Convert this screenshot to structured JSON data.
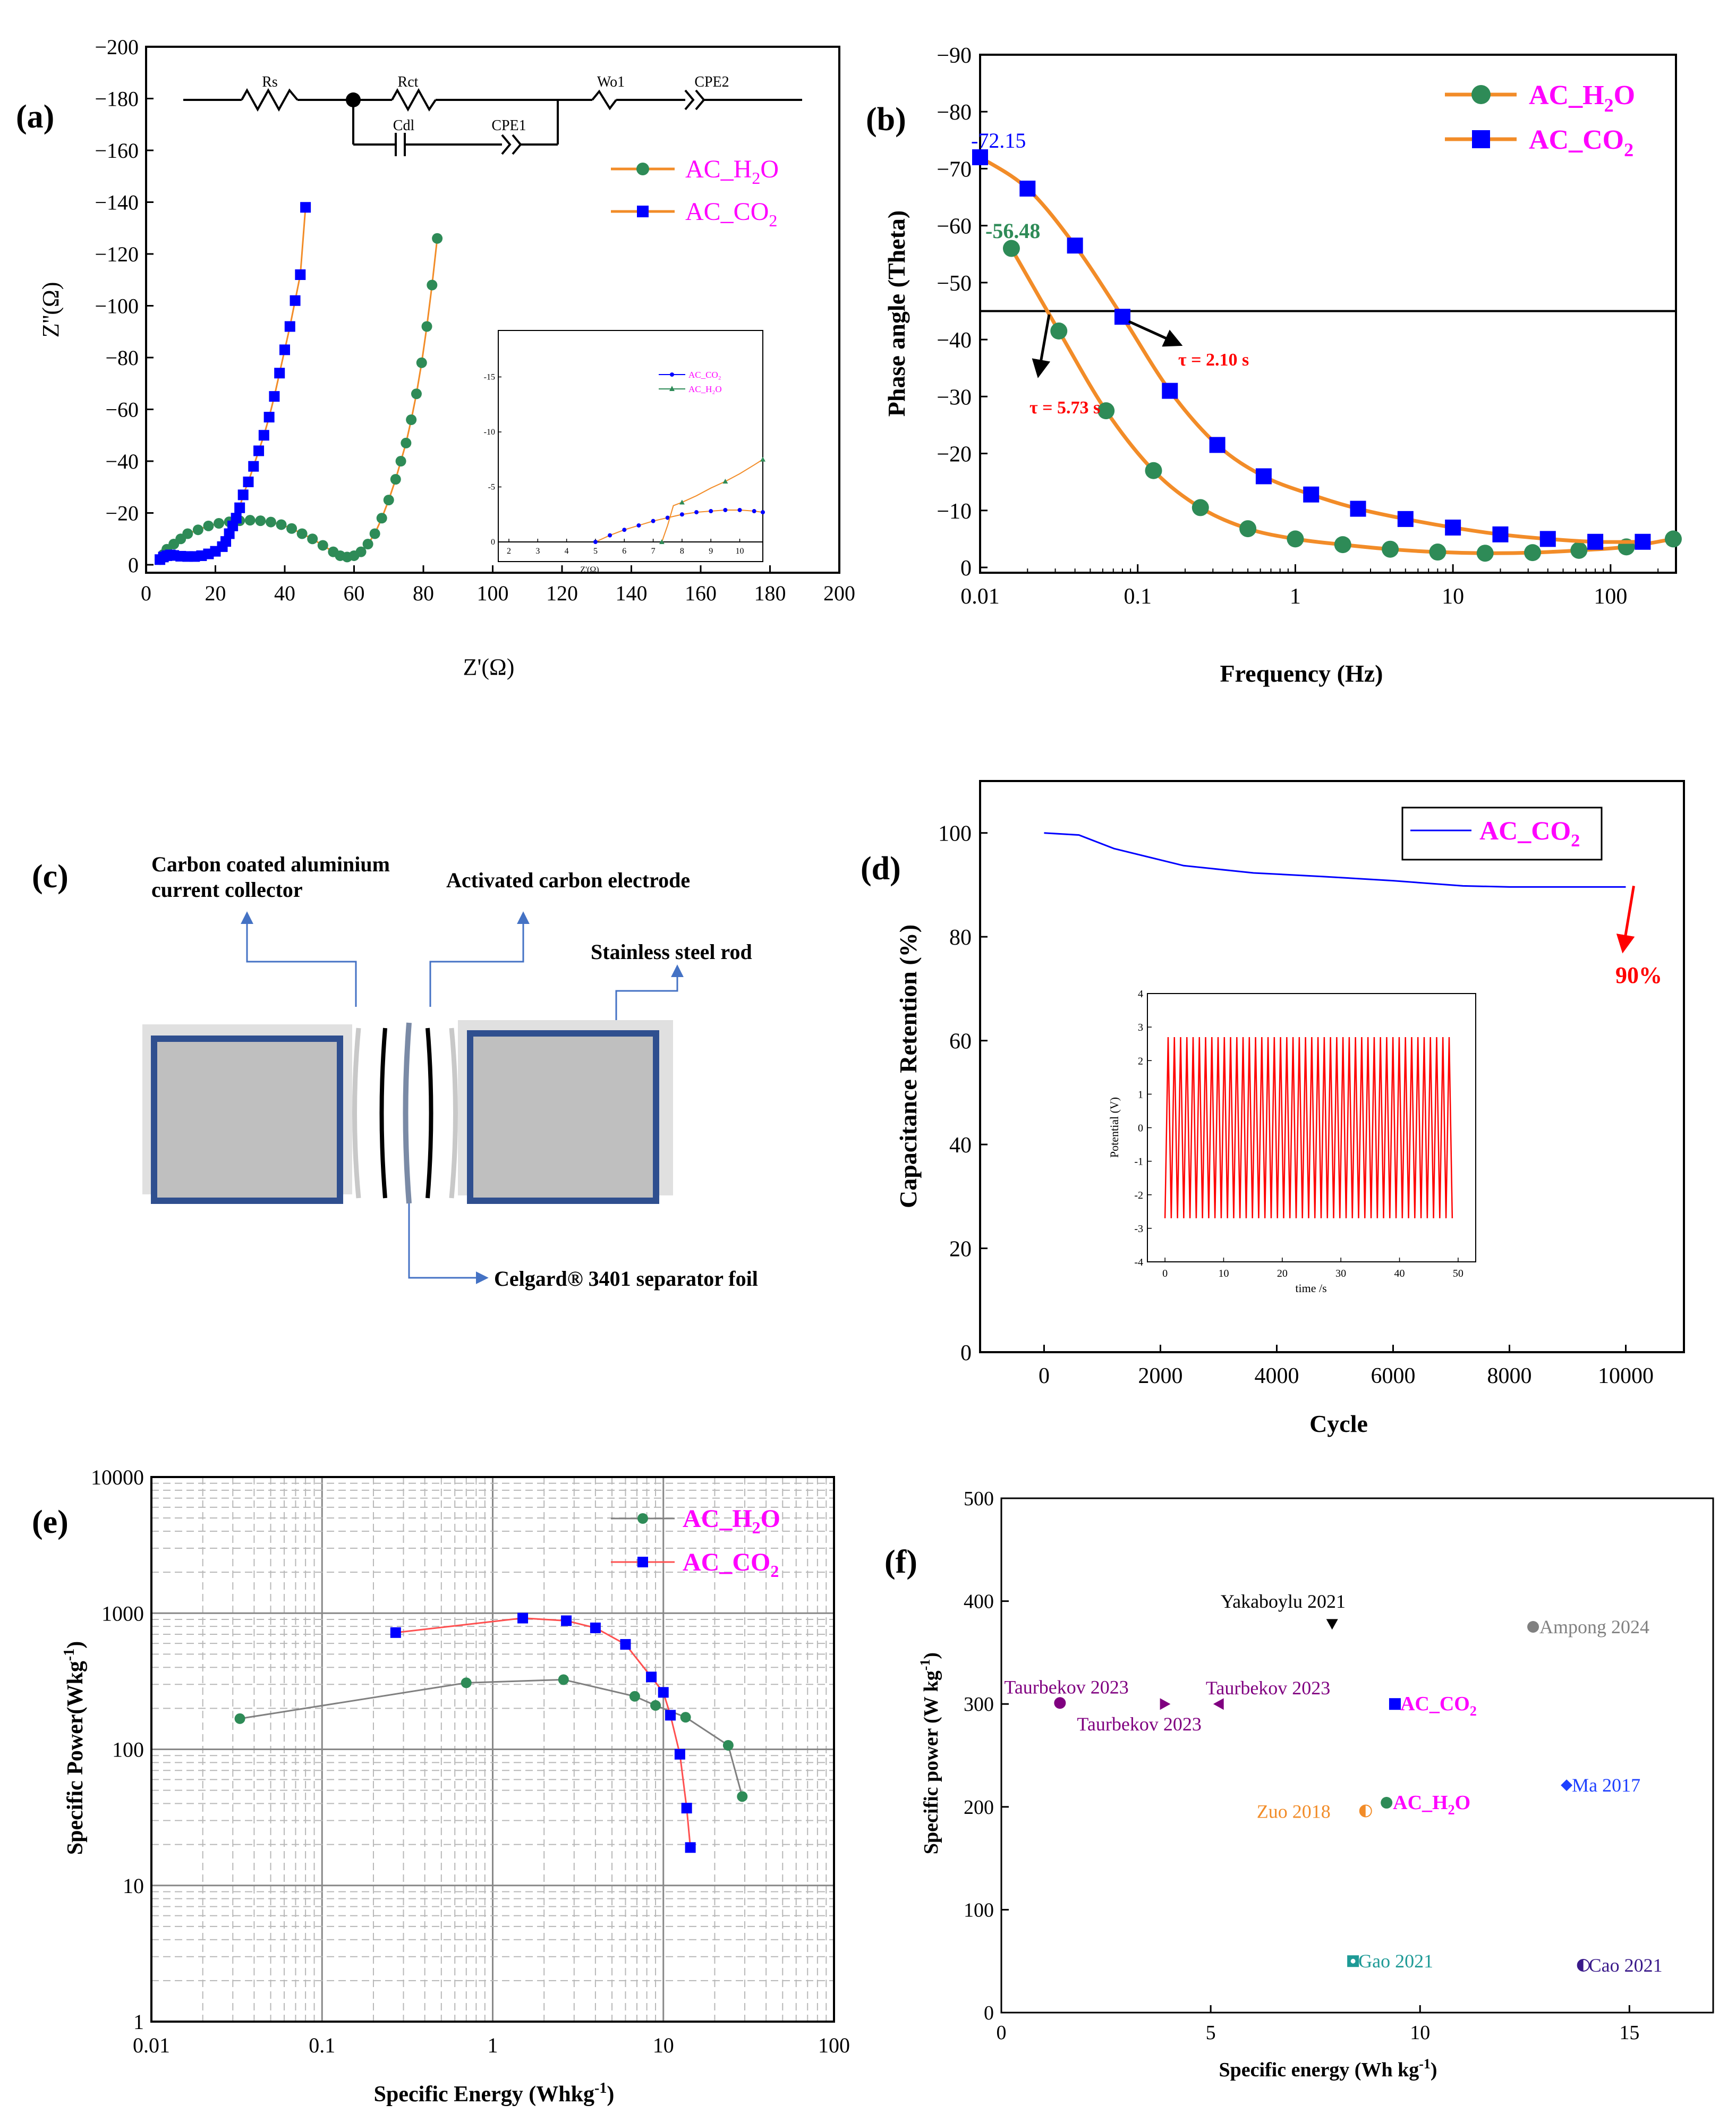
{
  "figure": {
    "accent": {
      "h2o": "#2e8b57",
      "co2": "#0000ff",
      "orange": "#f28c28",
      "magenta": "#ff00ff",
      "red": "#ff0000"
    }
  },
  "chart_data": [
    {
      "panel": "(a)",
      "type": "scatter",
      "title": "",
      "xlabel": "Z'(Ω)",
      "ylabel": "Z''(Ω)",
      "xlim": [
        0,
        200
      ],
      "ylim": [
        0,
        -200
      ],
      "xticks": [
        0,
        20,
        40,
        60,
        80,
        100,
        120,
        140,
        160,
        180,
        200
      ],
      "yticks": [
        0,
        -20,
        -40,
        -60,
        -80,
        -100,
        -120,
        -140,
        -160,
        -180,
        -200
      ],
      "legend": [
        "AC_H₂O",
        "AC_CO₂"
      ],
      "legend_sub": [
        "2",
        "2"
      ],
      "legend_base": [
        "AC_H",
        "AC_CO"
      ],
      "legend_tail": [
        "O",
        ""
      ],
      "circuit_labels": [
        "Rs",
        "Rct",
        "Wo1",
        "CPE2",
        "Cdl",
        "CPE1"
      ],
      "series": [
        {
          "name": "AC_H2O",
          "color": "#2e8b57",
          "x": [
            4,
            5,
            6,
            8,
            10,
            12,
            15,
            18,
            21,
            24,
            27,
            30,
            33,
            36,
            39,
            42,
            45,
            48,
            51,
            54,
            56,
            58,
            60,
            62,
            64,
            66,
            68,
            70,
            72,
            73.5,
            75,
            76.5,
            78,
            79.5,
            81,
            82.5,
            84
          ],
          "y": [
            -2,
            -4,
            -6,
            -8,
            -10,
            -12,
            -13.5,
            -15,
            -16,
            -16.6,
            -17,
            -17.2,
            -17,
            -16.5,
            -15.5,
            -14,
            -12,
            -10,
            -7.5,
            -5,
            -3.5,
            -3,
            -3.5,
            -5,
            -8,
            -12,
            -18,
            -25,
            -33,
            -40,
            -47,
            -56,
            -66,
            -78,
            -92,
            -108,
            -126
          ]
        },
        {
          "name": "AC_CO2",
          "color": "#0000ff",
          "x": [
            4,
            5,
            6,
            7,
            8,
            10,
            12,
            14,
            16,
            18,
            20,
            22,
            23,
            24,
            25,
            26,
            27,
            28,
            29.5,
            31,
            32.5,
            34,
            35.5,
            37,
            38.5,
            40,
            41.5,
            43,
            44.5,
            46
          ],
          "y": [
            -2,
            -3,
            -3.5,
            -3.8,
            -3.6,
            -3.3,
            -3.2,
            -3.2,
            -3.5,
            -4.2,
            -5.2,
            -7,
            -9,
            -12,
            -15,
            -18,
            -22,
            -27,
            -32,
            -38,
            -44,
            -50,
            -57,
            -65,
            -74,
            -83,
            -92,
            -102,
            -112,
            -138
          ]
        }
      ],
      "inset": {
        "xlim": [
          2,
          10.8
        ],
        "ylim": [
          0,
          18.5
        ],
        "xticks": [
          2,
          3,
          4,
          5,
          6,
          7,
          8,
          9,
          10
        ],
        "yticks": [
          5,
          10,
          15
        ],
        "ytick_labels": [
          "-5",
          "-10",
          "-15"
        ],
        "xlabel": "Z'(Ω)",
        "legend": [
          "AC_CO₂",
          "AC_H₂O"
        ],
        "co2": {
          "x": [
            5,
            5.5,
            6,
            6.5,
            7,
            7.5,
            8,
            8.5,
            9,
            9.5,
            10,
            10.5,
            10.8
          ],
          "y": [
            0,
            0.6,
            1.1,
            1.5,
            1.9,
            2.2,
            2.5,
            2.7,
            2.8,
            2.9,
            2.9,
            2.8,
            2.7
          ]
        },
        "h2o": {
          "x": [
            7.3,
            7.5,
            7.7,
            8,
            8.5,
            9,
            9.5,
            10,
            10.5,
            10.8
          ],
          "y": [
            0,
            1.5,
            3.3,
            3.6,
            4.2,
            4.9,
            5.5,
            6.2,
            7,
            7.5
          ]
        }
      }
    },
    {
      "panel": "(b)",
      "type": "line",
      "title": "",
      "xlabel": "Frequency (Hz)",
      "ylabel": "Phase angle (Theta)",
      "xscale": "log",
      "xlim": [
        0.01,
        260
      ],
      "ylim": [
        0,
        -90
      ],
      "xticks": [
        0.01,
        0.1,
        1,
        10,
        100
      ],
      "xtick_labels": [
        "0.01",
        "0.1",
        "1",
        "10",
        "100"
      ],
      "yticks": [
        0,
        -10,
        -20,
        -30,
        -40,
        -50,
        -60,
        -70,
        -80,
        -90
      ],
      "legend": [
        "AC_H₂O",
        "AC_CO₂"
      ],
      "legend_base": [
        "AC_H",
        "AC_CO"
      ],
      "legend_sub": [
        "2",
        "2"
      ],
      "legend_tail": [
        "O",
        ""
      ],
      "hline": -45,
      "annotations": [
        "-72.15",
        "-56.48",
        "τ = 2.10 s",
        "τ = 5.73 s"
      ],
      "series": [
        {
          "name": "AC_H2O",
          "color": "#2e8b57",
          "marker": "circle",
          "x": [
            0.0158,
            0.0316,
            0.063,
            0.126,
            0.25,
            0.5,
            1,
            2,
            4,
            8,
            16,
            32,
            63,
            126,
            250
          ],
          "y": [
            -56,
            -41.5,
            -27.5,
            -17,
            -10.5,
            -6.8,
            -5,
            -4,
            -3.2,
            -2.7,
            -2.5,
            -2.6,
            -3,
            -3.6,
            -5
          ]
        },
        {
          "name": "AC_CO2",
          "color": "#0000ff",
          "marker": "square",
          "x": [
            0.01,
            0.02,
            0.04,
            0.08,
            0.16,
            0.32,
            0.63,
            1.26,
            2.5,
            5,
            10,
            20,
            40,
            80,
            160
          ],
          "y": [
            -72,
            -66.5,
            -56.5,
            -44,
            -31,
            -21.5,
            -16,
            -12.8,
            -10.3,
            -8.5,
            -7,
            -5.8,
            -5,
            -4.5,
            -4.5
          ]
        }
      ]
    },
    {
      "panel": "(d)",
      "type": "line",
      "title": "",
      "xlabel": "Cycle",
      "ylabel": "Capacitance Retention (%)",
      "xlim": [
        -1100,
        11000
      ],
      "ylim": [
        0,
        110
      ],
      "xticks": [
        0,
        2000,
        4000,
        6000,
        8000,
        10000
      ],
      "yticks": [
        0,
        20,
        40,
        60,
        80,
        100
      ],
      "legend": [
        "AC_CO₂"
      ],
      "legend_base": [
        "AC_CO"
      ],
      "legend_sub": [
        "2"
      ],
      "annotation": "90%",
      "series": [
        {
          "name": "AC_CO2",
          "color": "#0000ff",
          "x": [
            0,
            600,
            1200,
            2400,
            3600,
            4800,
            6000,
            7200,
            8000,
            9000,
            10000
          ],
          "y": [
            100,
            99.6,
            97,
            93.7,
            92.3,
            91.6,
            90.8,
            89.8,
            89.6,
            89.6,
            89.6
          ]
        }
      ],
      "inset": {
        "xlabel": "time /s",
        "ylabel": "Potential (V)",
        "xlim": [
          -3,
          53
        ],
        "ylim": [
          -4,
          4
        ],
        "xticks": [
          0,
          10,
          20,
          30,
          40,
          50
        ],
        "yticks": [
          -4,
          -3,
          -2,
          -1,
          0,
          1,
          2,
          3,
          4
        ],
        "wave": {
          "t_start": 0,
          "t_end": 49,
          "cycles": 46,
          "amplitude": 2.7
        }
      }
    },
    {
      "panel": "(e)",
      "type": "line",
      "title": "",
      "xlabel": "Specific Energy (Whkg⁻¹)",
      "xlabel_base": "Specific Energy (Whkg",
      "xlabel_sup": "-1",
      "xlabel_tail": ")",
      "ylabel": "Specific Power(Wkg⁻¹)",
      "ylabel_base": "Specific Power(Wkg",
      "ylabel_sup": "-1",
      "ylabel_tail": ")",
      "xscale": "log",
      "yscale": "log",
      "xlim": [
        0.01,
        100
      ],
      "ylim": [
        1,
        10000
      ],
      "xticks": [
        0.01,
        0.1,
        1,
        10,
        100
      ],
      "xtick_labels": [
        "0.01",
        "0.1",
        "1",
        "10",
        "100"
      ],
      "yticks": [
        1,
        10,
        100,
        1000,
        10000
      ],
      "ytick_labels": [
        "1",
        "10",
        "100",
        "1000",
        "10000"
      ],
      "legend": [
        "AC_H₂O",
        "AC_CO₂"
      ],
      "legend_base": [
        "AC_H",
        "AC_CO"
      ],
      "legend_sub": [
        "2",
        "2"
      ],
      "legend_tail": [
        "O",
        ""
      ],
      "series": [
        {
          "name": "AC_H2O",
          "color": "#2e8b57",
          "line": "#808080",
          "x": [
            0.033,
            0.7,
            2.6,
            6.8,
            9,
            13.5,
            24,
            29
          ],
          "y": [
            168,
            308,
            325,
            245,
            210,
            172,
            107,
            45
          ]
        },
        {
          "name": "AC_CO2",
          "color": "#0000ff",
          "line": "#ff5050",
          "x": [
            0.27,
            1.5,
            2.7,
            4,
            6,
            8.5,
            10,
            11,
            12.5,
            13.7,
            14.4
          ],
          "y": [
            720,
            920,
            880,
            780,
            590,
            340,
            262,
            178,
            92,
            37,
            19
          ]
        }
      ]
    },
    {
      "panel": "(f)",
      "type": "scatter",
      "title": "",
      "xlabel": "Specific energy (Wh kg⁻¹)",
      "xlabel_base": "Specific energy (Wh kg",
      "xlabel_sup": "-1",
      "xlabel_tail": ")",
      "ylabel": "Specific power (W kg⁻¹)",
      "ylabel_base": "Specific power (W kg",
      "ylabel_sup": "-1",
      "ylabel_tail": ")",
      "xlim": [
        0,
        17
      ],
      "ylim": [
        0,
        500
      ],
      "xticks": [
        0,
        5,
        10,
        15
      ],
      "yticks": [
        0,
        100,
        200,
        300,
        400,
        500
      ],
      "points": [
        {
          "label": "Yakaboylu 2021",
          "x": 7.9,
          "y": 378,
          "color": "#000000",
          "marker": "tri-down"
        },
        {
          "label": "Ampong 2024",
          "x": 12.7,
          "y": 375,
          "color": "#808080",
          "marker": "circle"
        },
        {
          "label": "Taurbekov 2023",
          "x": 1.4,
          "y": 301,
          "color": "#800080",
          "marker": "circle"
        },
        {
          "label": "Taurbekov 2023",
          "x": 3.9,
          "y": 300,
          "color": "#800080",
          "marker": "tri-right"
        },
        {
          "label": "Taurbekov 2023",
          "x": 5.2,
          "y": 300,
          "color": "#800080",
          "marker": "tri-left"
        },
        {
          "label": "AC_CO₂",
          "x": 9.4,
          "y": 300,
          "color": "#0000ff",
          "marker": "square"
        },
        {
          "label": "Ma 2017",
          "x": 13.5,
          "y": 221,
          "color": "#1e40ff",
          "marker": "diamond"
        },
        {
          "label": "AC_H₂O",
          "x": 9.2,
          "y": 204,
          "color": "#2e8b57",
          "marker": "circle"
        },
        {
          "label": "Zuo 2018",
          "x": 8.7,
          "y": 196,
          "color": "#f28c28",
          "marker": "half-circle"
        },
        {
          "label": "Gao 2021",
          "x": 8.4,
          "y": 50,
          "color": "#1e9a96",
          "marker": "square-dot"
        },
        {
          "label": "Cao 2021",
          "x": 13.9,
          "y": 46,
          "color": "#3a1a8a",
          "marker": "half-circle"
        }
      ],
      "label_parts": {
        "co2": {
          "base": "AC_CO",
          "sub": "2"
        },
        "h2o": {
          "base": "AC_H",
          "sub": "2",
          "tail": "O"
        }
      }
    }
  ],
  "diagram_c": {
    "panel": "(c)",
    "labels": {
      "collector_line1": "Carbon coated aluminium",
      "collector_line2": "current collector",
      "electrode": "Activated carbon electrode",
      "rod": "Stainless steel rod",
      "separator": "Celgard® 3401 separator foil"
    }
  }
}
